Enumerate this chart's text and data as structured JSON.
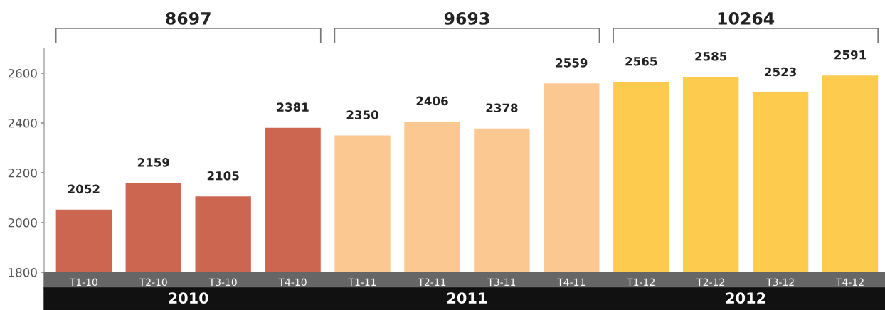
{
  "chart_data": {
    "type": "bar",
    "categories": [
      "T1-10",
      "T2-10",
      "T3-10",
      "T4-10",
      "T1-11",
      "T2-11",
      "T3-11",
      "T4-11",
      "T1-12",
      "T2-12",
      "T3-12",
      "T4-12"
    ],
    "values": [
      2052,
      2159,
      2105,
      2381,
      2350,
      2406,
      2378,
      2559,
      2565,
      2585,
      2523,
      2591
    ],
    "colors": [
      "#cd6650",
      "#cd6650",
      "#cd6650",
      "#cd6650",
      "#fbc891",
      "#fbc891",
      "#fbc891",
      "#fbc891",
      "#fdcc4e",
      "#fdcc4e",
      "#fdcc4e",
      "#fdcc4e"
    ],
    "ylim": [
      1800,
      2700
    ],
    "yticks": [
      1800,
      2000,
      2200,
      2400,
      2600
    ],
    "data_labels": true,
    "grid": false,
    "annotations": [
      "8697",
      "9693",
      "10264",
      "2010",
      "2011",
      "2012"
    ]
  }
}
